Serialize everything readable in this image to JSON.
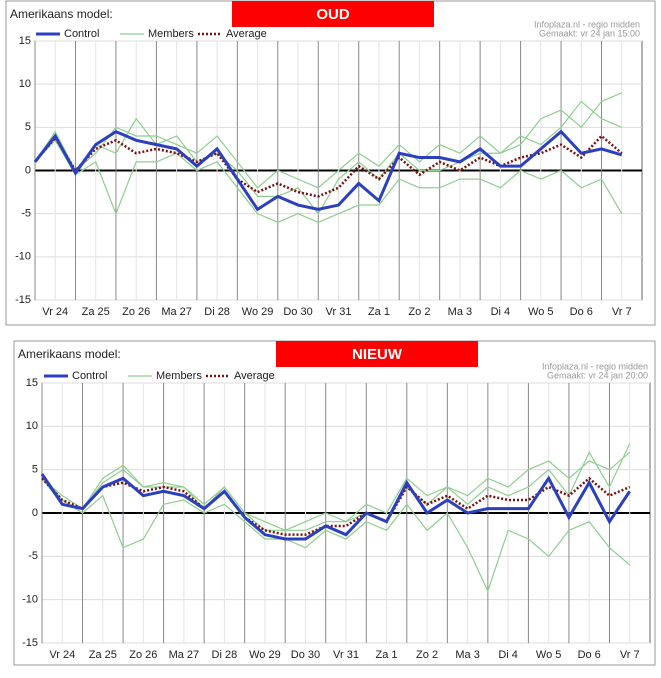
{
  "chart_data": [
    {
      "type": "line",
      "title": "Amerikaans model:",
      "banner": "OUD",
      "source": "Infoplaza.nl - regio midden",
      "made": "Gemaakt:  vr 24 jan 15:00",
      "x": [
        0,
        0.5,
        1,
        1.5,
        2,
        2.5,
        3,
        3.5,
        4,
        4.5,
        5,
        5.5,
        6,
        6.5,
        7,
        7.5,
        8,
        8.5,
        9,
        9.5,
        10,
        10.5,
        11,
        11.5,
        12,
        12.5,
        13,
        13.5,
        14,
        14.5
      ],
      "xlim": [
        0,
        15
      ],
      "xticks": [
        {
          "value": 0,
          "label": "Vr 24"
        },
        {
          "value": 1,
          "label": "Za 25"
        },
        {
          "value": 2,
          "label": "Zo 26"
        },
        {
          "value": 3,
          "label": "Ma 27"
        },
        {
          "value": 4,
          "label": "Di 28"
        },
        {
          "value": 5,
          "label": "Wo 29"
        },
        {
          "value": 6,
          "label": "Do 30"
        },
        {
          "value": 7,
          "label": "Vr 31"
        },
        {
          "value": 8,
          "label": "Za 1"
        },
        {
          "value": 9,
          "label": "Zo 2"
        },
        {
          "value": 10,
          "label": "Ma 3"
        },
        {
          "value": 11,
          "label": "Di 4"
        },
        {
          "value": 12,
          "label": "Wo 5"
        },
        {
          "value": 13,
          "label": "Do 6"
        },
        {
          "value": 14,
          "label": "Vr 7"
        }
      ],
      "ylim": [
        -15,
        15
      ],
      "yticks": [
        -15,
        -10,
        -5,
        0,
        5,
        10,
        15
      ],
      "grid": true,
      "series": [
        {
          "name": "Control",
          "color": "#2b3fbf",
          "values": [
            1,
            4,
            -0.3,
            3,
            4.5,
            3.5,
            3,
            2.5,
            0.5,
            2.5,
            -1,
            -4.5,
            -3,
            -4,
            -4.5,
            -4,
            -1.5,
            -3.5,
            2,
            1.5,
            1.5,
            1,
            2.5,
            0.5,
            0.5,
            2.5,
            4.5,
            2,
            2.5,
            1.8
          ]
        },
        {
          "name": "Members",
          "color": "#8fcf8f",
          "values": [
            [
              1,
              4.5,
              0,
              2,
              5,
              4,
              4,
              3,
              2,
              4,
              1,
              -2,
              0,
              -1,
              -2,
              0,
              2,
              0.5,
              3,
              1,
              3,
              2,
              4,
              2,
              3,
              6,
              7,
              5,
              8,
              9
            ],
            [
              1,
              3.5,
              -0.5,
              1,
              -5,
              1,
              1,
              2,
              0,
              1,
              -2,
              -5,
              -6,
              -5,
              -6,
              -5,
              -4,
              -4,
              -1,
              -2,
              -2,
              -1,
              -1,
              -2,
              0,
              -1,
              0,
              -2,
              -1,
              -5
            ],
            [
              1,
              4,
              0,
              3,
              2,
              6,
              3,
              4,
              1,
              2,
              0,
              -3,
              -3,
              -2,
              -5,
              -1,
              1,
              -1,
              2,
              0,
              0,
              1,
              2,
              2,
              4,
              3,
              5,
              8,
              6,
              5
            ]
          ]
        },
        {
          "name": "Average",
          "color": "#7a1010",
          "dashed": true,
          "values": [
            1,
            3.8,
            0,
            2.5,
            3.5,
            2,
            2.5,
            2,
            1,
            2,
            -1,
            -2.5,
            -1.5,
            -2.5,
            -3,
            -2,
            0.5,
            -1,
            1.5,
            -0.5,
            1,
            0,
            1.5,
            0.5,
            1.5,
            2,
            3,
            1.5,
            4,
            2
          ]
        }
      ]
    },
    {
      "type": "line",
      "title": "Amerikaans model:",
      "banner": "NIEUW",
      "source": "Infoplaza.nl - regio midden",
      "made": "Gemaakt:  vr 24 jan 20:00",
      "x": [
        0,
        0.5,
        1,
        1.5,
        2,
        2.5,
        3,
        3.5,
        4,
        4.5,
        5,
        5.5,
        6,
        6.5,
        7,
        7.5,
        8,
        8.5,
        9,
        9.5,
        10,
        10.5,
        11,
        11.5,
        12,
        12.5,
        13,
        13.5,
        14,
        14.5
      ],
      "xlim": [
        0,
        15
      ],
      "xticks": [
        {
          "value": 0,
          "label": "Vr 24"
        },
        {
          "value": 1,
          "label": "Za 25"
        },
        {
          "value": 2,
          "label": "Zo 26"
        },
        {
          "value": 3,
          "label": "Ma 27"
        },
        {
          "value": 4,
          "label": "Di 28"
        },
        {
          "value": 5,
          "label": "Wo 29"
        },
        {
          "value": 6,
          "label": "Do 30"
        },
        {
          "value": 7,
          "label": "Vr 31"
        },
        {
          "value": 8,
          "label": "Za 1"
        },
        {
          "value": 9,
          "label": "Zo 2"
        },
        {
          "value": 10,
          "label": "Ma 3"
        },
        {
          "value": 11,
          "label": "Di 4"
        },
        {
          "value": 12,
          "label": "Wo 5"
        },
        {
          "value": 13,
          "label": "Do 6"
        },
        {
          "value": 14,
          "label": "Vr 7"
        }
      ],
      "ylim": [
        -15,
        15
      ],
      "yticks": [
        -15,
        -10,
        -5,
        0,
        5,
        10,
        15
      ],
      "grid": true,
      "series": [
        {
          "name": "Control",
          "color": "#2b3fbf",
          "values": [
            4.5,
            1,
            0.5,
            3,
            4,
            2,
            2.5,
            2,
            0.5,
            2.5,
            -0.5,
            -2.5,
            -3,
            -3,
            -1.5,
            -2.5,
            0,
            -1,
            3.5,
            0,
            1.5,
            0,
            0.5,
            0.5,
            0.5,
            4,
            -0.5,
            3.5,
            -1,
            2.5
          ]
        },
        {
          "name": "Members",
          "color": "#8fcf8f",
          "values": [
            [
              4,
              2,
              0.5,
              4,
              5.5,
              3,
              3.5,
              3,
              1,
              3,
              0,
              -1,
              -2,
              -1,
              0,
              -1,
              1,
              0,
              4,
              2,
              3,
              2,
              4,
              3,
              5,
              6,
              4,
              6,
              5,
              7
            ],
            [
              4.5,
              1.5,
              0,
              2,
              -4,
              -3,
              1,
              1.5,
              0,
              1,
              -1,
              -3,
              -3,
              -4,
              -2,
              -3,
              -1,
              -2,
              1,
              -2,
              0,
              -4,
              -9,
              -2,
              -3,
              -5,
              -2,
              -1,
              -4,
              -6
            ],
            [
              4,
              1,
              0.5,
              3.5,
              5,
              3,
              3,
              3,
              0.5,
              3,
              0,
              -2,
              -2,
              -2,
              -1,
              -1,
              0,
              -1,
              3,
              1,
              3,
              1,
              3,
              2,
              3,
              5,
              2,
              7,
              3,
              8
            ]
          ]
        },
        {
          "name": "Average",
          "color": "#7a1010",
          "dashed": true,
          "values": [
            4,
            1.5,
            0.5,
            3,
            3.5,
            2.5,
            3,
            2.5,
            0.5,
            2.5,
            -0.5,
            -2,
            -2.5,
            -2.5,
            -1.5,
            -1.5,
            0,
            -1,
            3,
            1,
            2,
            0.5,
            2,
            1.5,
            1.5,
            3,
            2,
            4,
            2,
            3
          ]
        }
      ]
    }
  ]
}
